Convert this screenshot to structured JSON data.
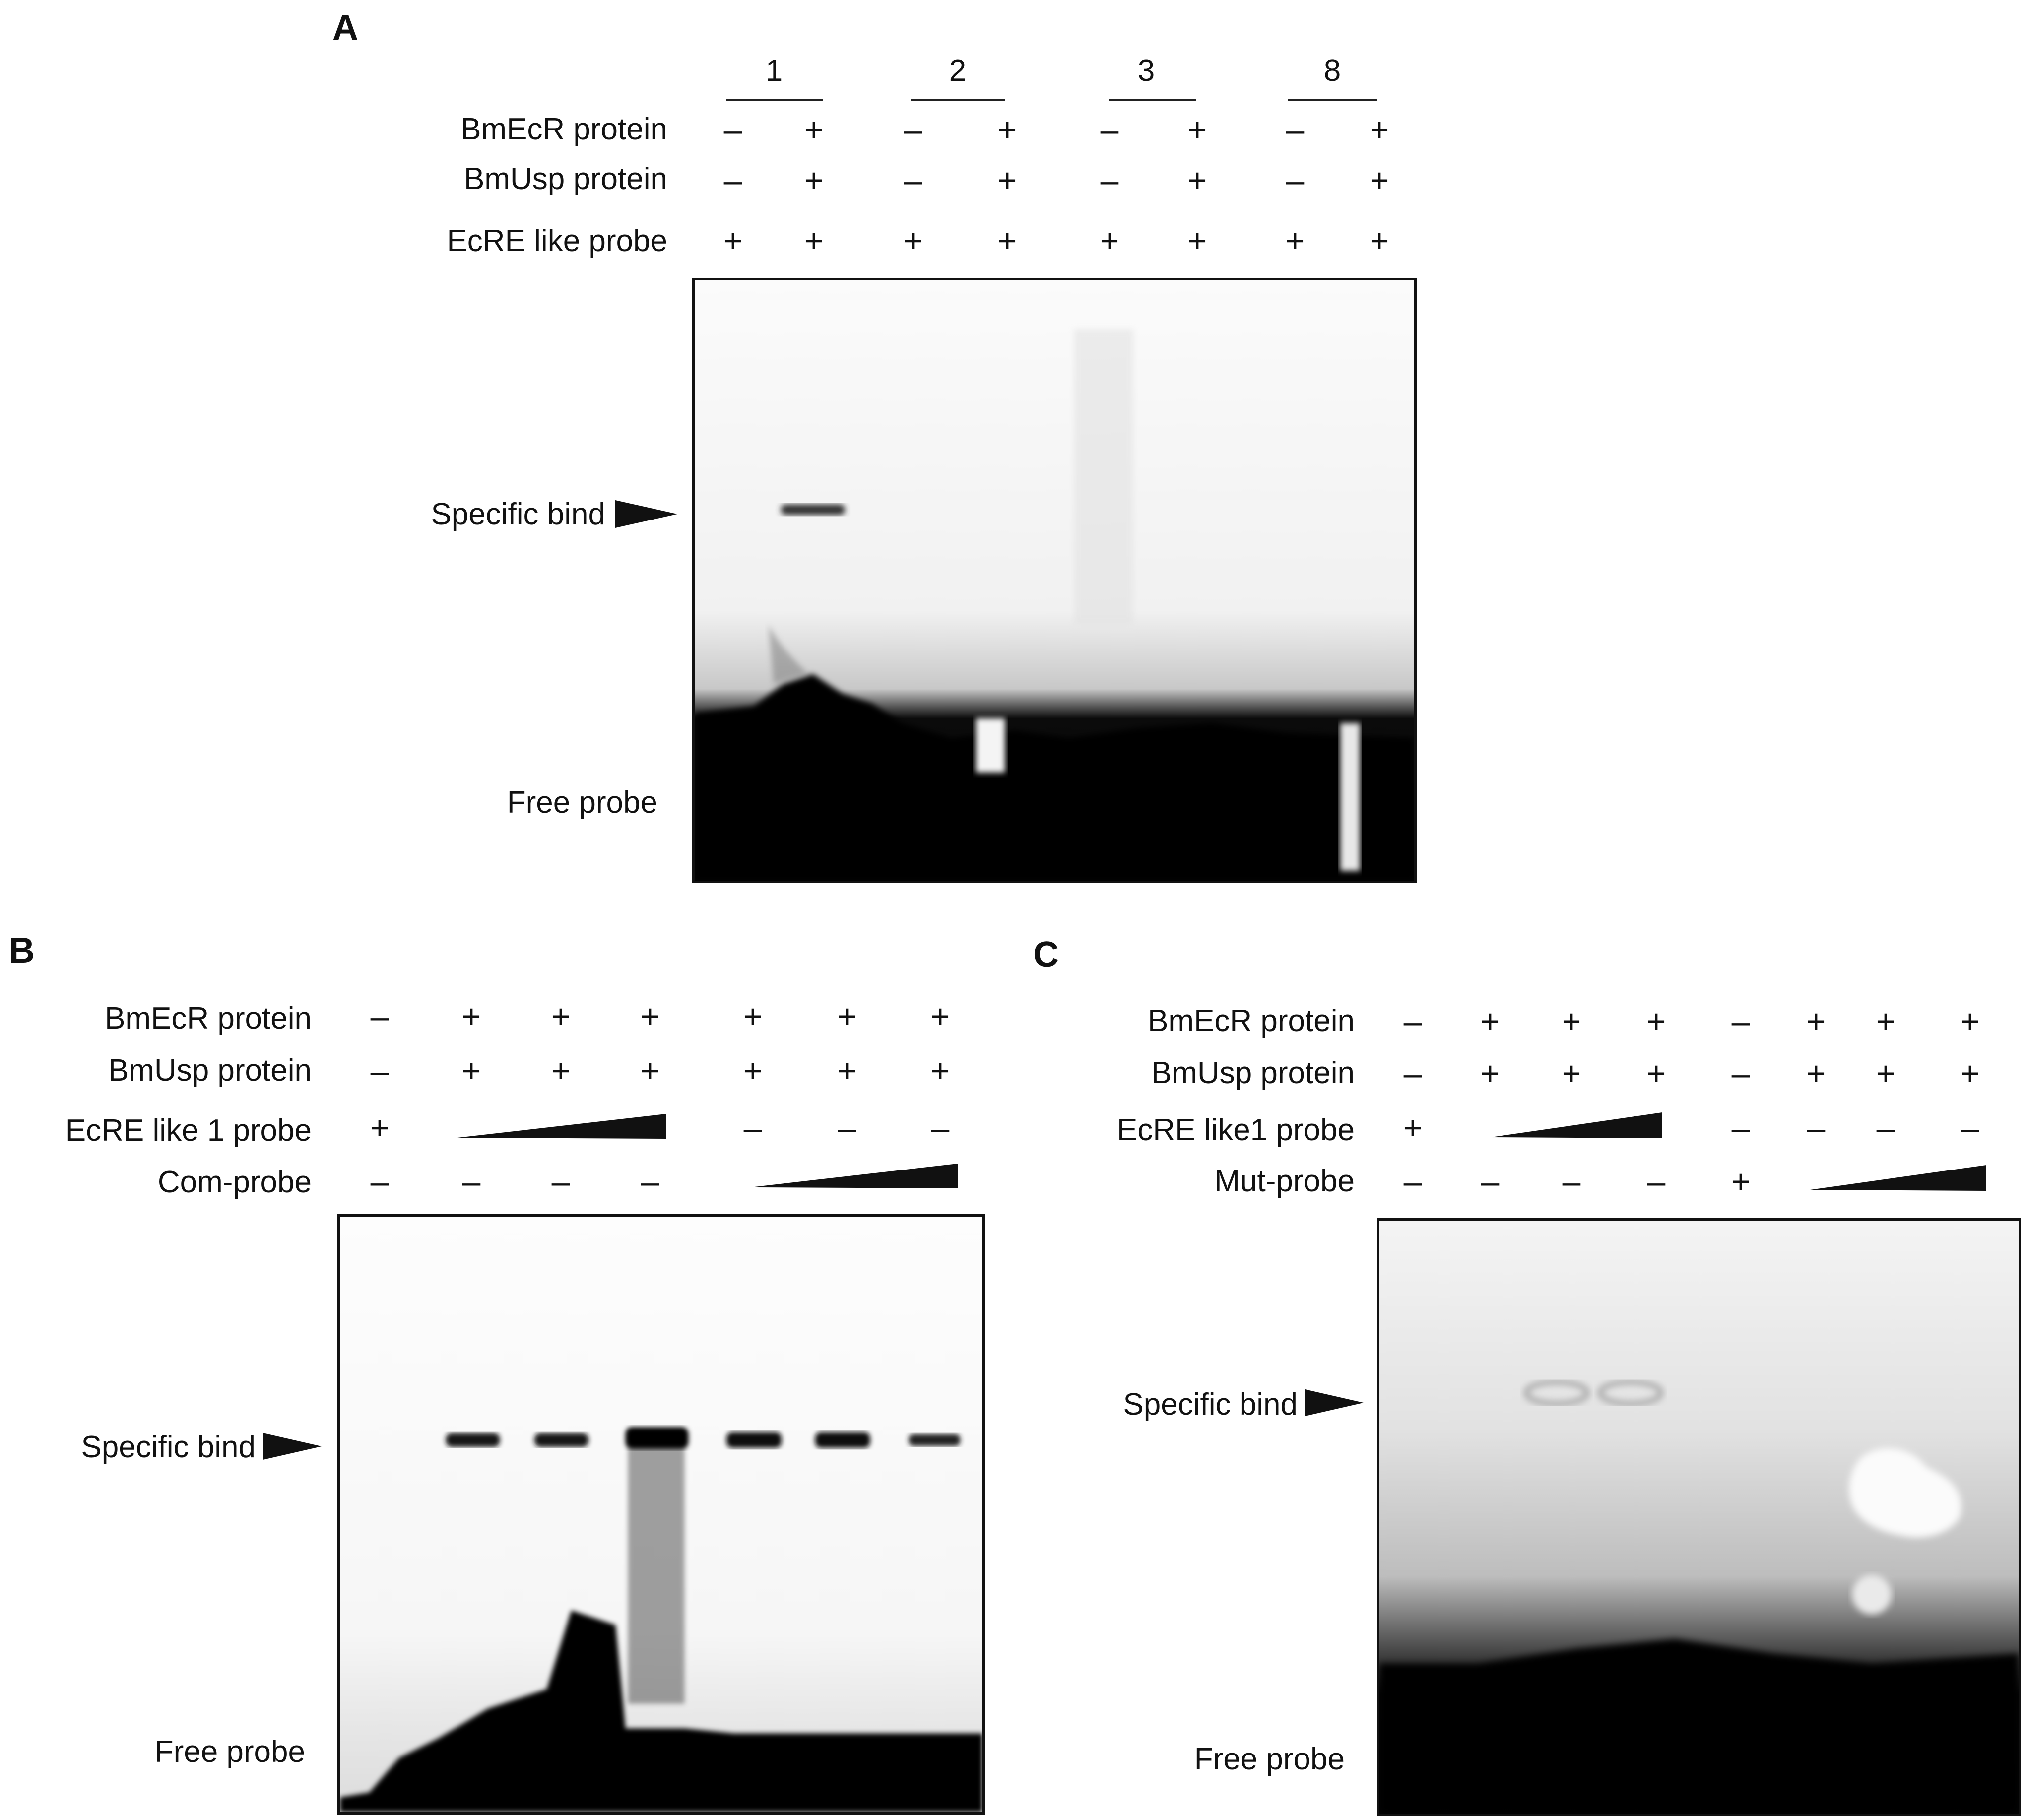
{
  "panels": {
    "A": {
      "letter": "A",
      "lane_groups": [
        "1",
        "2",
        "3",
        "8"
      ],
      "rows": [
        {
          "label": "BmEcR protein",
          "values": [
            "–",
            "+",
            "–",
            "+",
            "–",
            "+",
            "–",
            "+"
          ]
        },
        {
          "label": "BmUsp protein",
          "values": [
            "–",
            "+",
            "–",
            "+",
            "–",
            "+",
            "–",
            "+"
          ]
        },
        {
          "label": "EcRE like probe",
          "values": [
            "+",
            "+",
            "+",
            "+",
            "+",
            "+",
            "+",
            "+"
          ]
        }
      ],
      "specific_bind_label": "Specific bind",
      "free_probe_label": "Free probe"
    },
    "B": {
      "letter": "B",
      "rows": [
        {
          "label": "BmEcR protein",
          "values": [
            "–",
            "+",
            "+",
            "+",
            "+",
            "+",
            "+"
          ]
        },
        {
          "label": "BmUsp protein",
          "values": [
            "–",
            "+",
            "+",
            "+",
            "+",
            "+",
            "+"
          ]
        },
        {
          "label": "EcRE like 1 probe",
          "values": [
            "+",
            "",
            "",
            "",
            "–",
            "–",
            "–"
          ]
        },
        {
          "label": "Com-probe",
          "values": [
            "–",
            "–",
            "–",
            "–",
            "",
            "",
            ""
          ]
        }
      ],
      "specific_bind_label": "Specific bind",
      "free_probe_label": "Free probe"
    },
    "C": {
      "letter": "C",
      "rows": [
        {
          "label": "BmEcR protein",
          "values": [
            "–",
            "+",
            "+",
            "+",
            "–",
            "+",
            "+",
            "+"
          ]
        },
        {
          "label": "BmUsp protein",
          "values": [
            "–",
            "+",
            "+",
            "+",
            "–",
            "+",
            "+",
            "+"
          ]
        },
        {
          "label": "EcRE like1 probe",
          "values": [
            "+",
            "",
            "",
            "",
            "–",
            "–",
            "–",
            "–"
          ]
        },
        {
          "label": "Mut-probe",
          "values": [
            "–",
            "–",
            "–",
            "–",
            "+",
            "",
            "",
            ""
          ]
        }
      ],
      "specific_bind_label": "Specific bind",
      "free_probe_label": "Free probe"
    }
  }
}
